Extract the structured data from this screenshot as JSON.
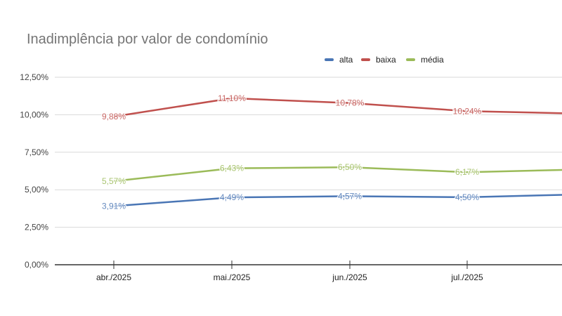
{
  "chart_data": {
    "type": "line",
    "title": "Inadimplência por valor de condomínio",
    "xlabel": "",
    "ylabel": "",
    "categories": [
      "abr./2025",
      "mai./2025",
      "jun./2025",
      "jul./2025"
    ],
    "ylim": [
      0,
      12.5
    ],
    "yticks": [
      "0,00%",
      "2,50%",
      "5,00%",
      "7,50%",
      "10,00%",
      "12,50%"
    ],
    "ytick_values": [
      0,
      2.5,
      5,
      7.5,
      10,
      12.5
    ],
    "grid": true,
    "legend_position": "top-right",
    "series": [
      {
        "name": "alta",
        "color": "#4a76b5",
        "values": [
          3.91,
          4.49,
          4.57,
          4.5
        ],
        "labels": [
          "3,91%",
          "4,49%",
          "4,57%",
          "4,50%"
        ],
        "next_offscreen_value": 4.7
      },
      {
        "name": "baixa",
        "color": "#c0504d",
        "values": [
          9.88,
          11.1,
          10.78,
          10.24
        ],
        "labels": [
          "9,88%",
          "11,10%",
          "10,78%",
          "10,24%"
        ],
        "next_offscreen_value": 10.07
      },
      {
        "name": "média",
        "color": "#9bbb59",
        "values": [
          5.57,
          6.43,
          6.5,
          6.17
        ],
        "labels": [
          "5,57%",
          "6,43%",
          "6,50%",
          "6,17%"
        ],
        "next_offscreen_value": 6.36
      }
    ]
  }
}
